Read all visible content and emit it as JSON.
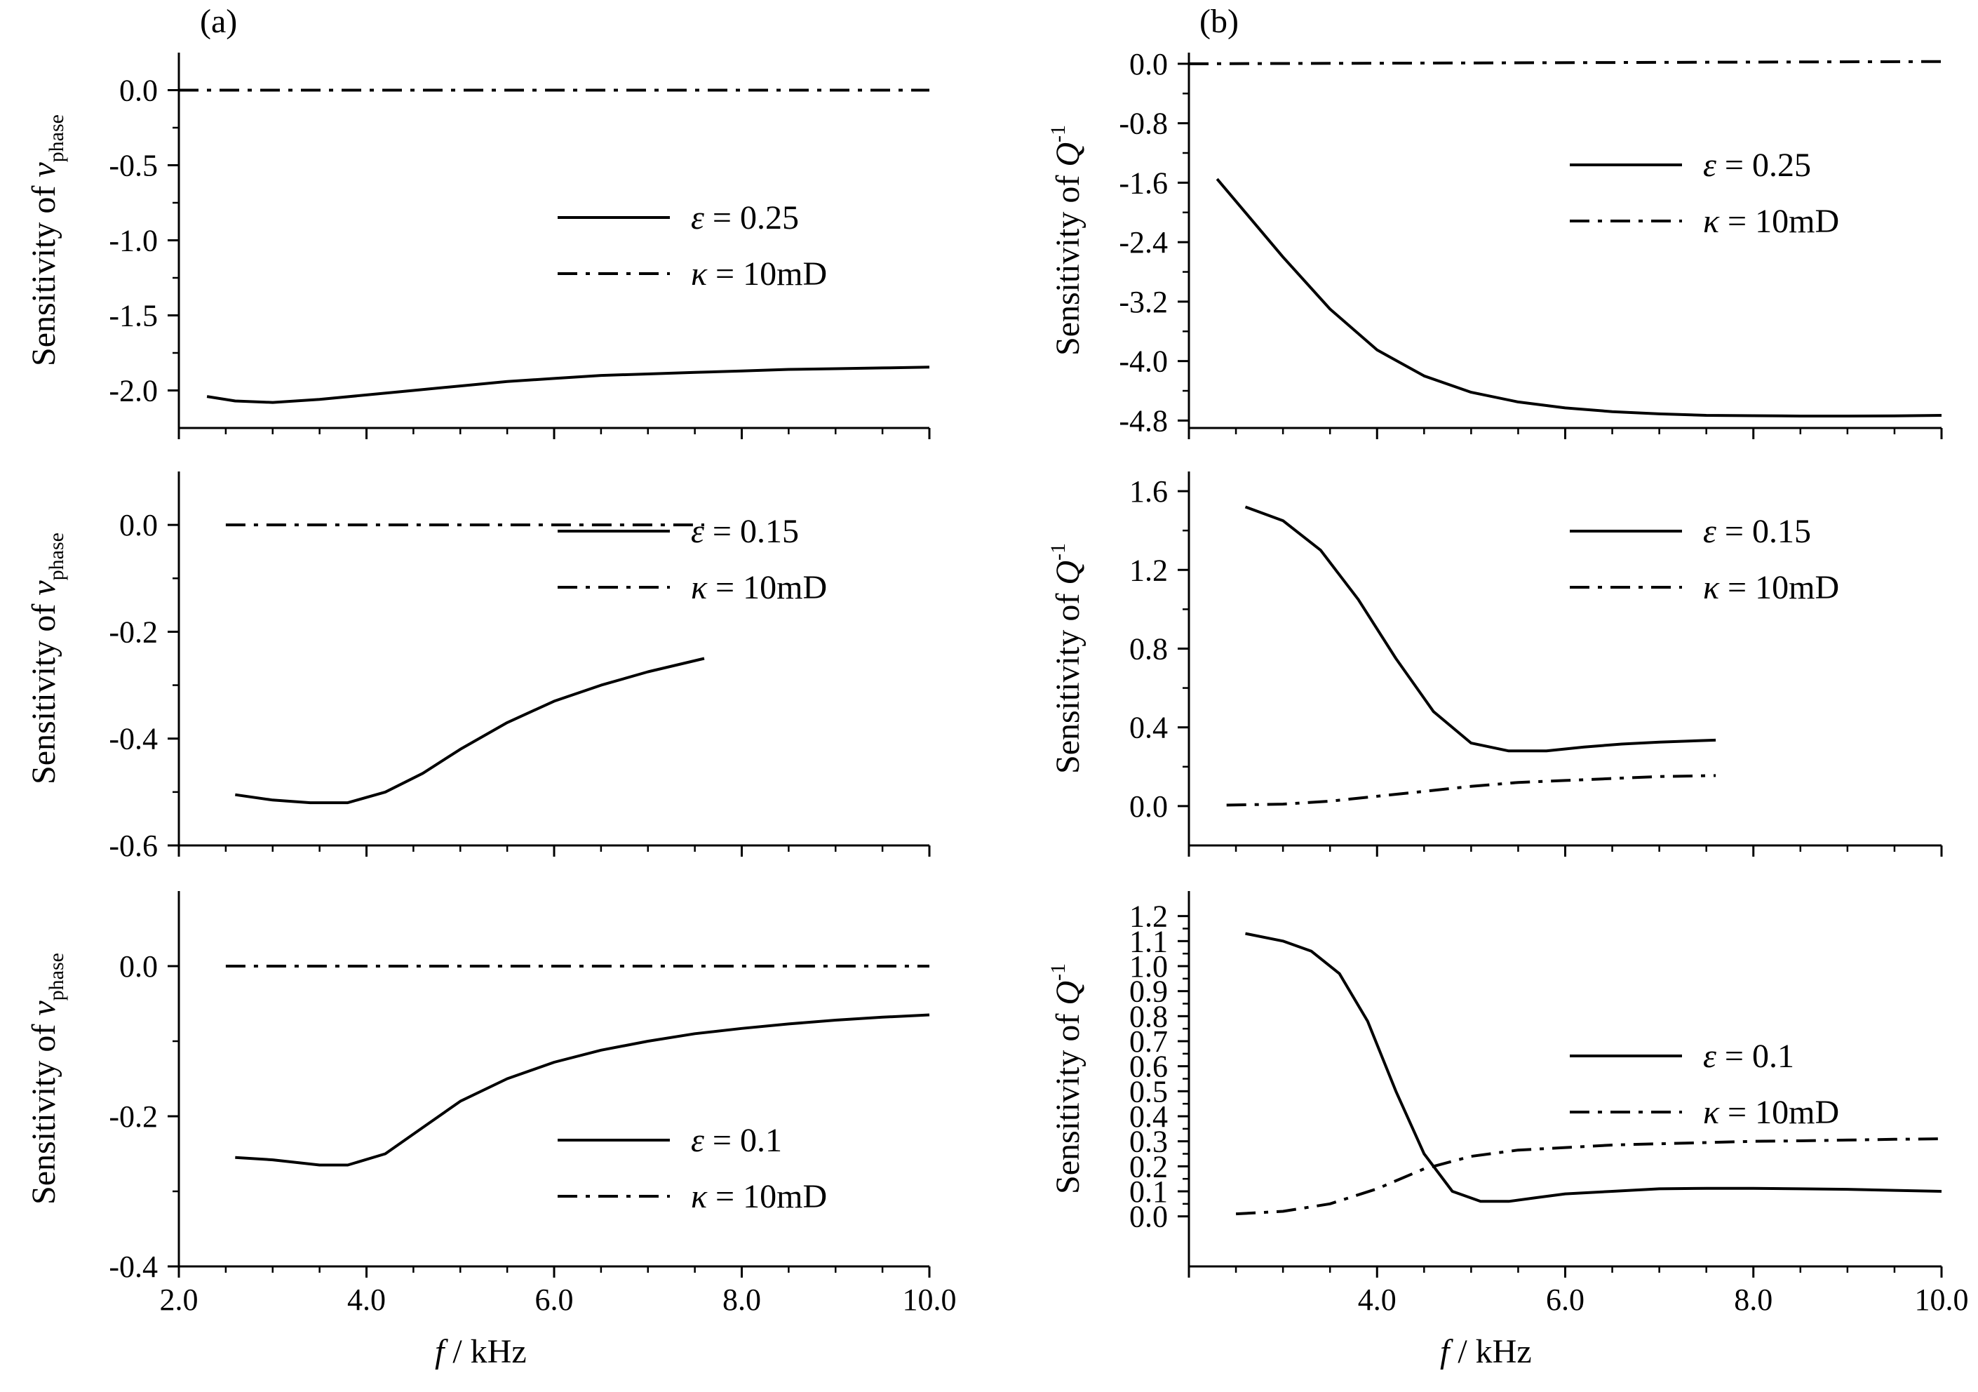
{
  "figure": {
    "panel_labels": [
      "(a)",
      "(b)"
    ],
    "x_axis_title": {
      "var": "f",
      "unit": " / kHz"
    }
  },
  "chart_data": [
    {
      "id": "a1",
      "type": "line",
      "column": "a",
      "row": 0,
      "ylabel": {
        "prefix": "Sensitivity of ",
        "var": "v",
        "sub": "phase"
      },
      "xlim": [
        2.0,
        10.0
      ],
      "ylim": [
        -2.25,
        0.25
      ],
      "yticks": [
        0.0,
        -0.5,
        -1.0,
        -1.5,
        -2.0
      ],
      "ytick_labels": [
        "0.0",
        "-0.5",
        "-1.0",
        "-1.5",
        "-2.0"
      ],
      "xticks": [
        2.0,
        4.0,
        6.0,
        8.0,
        10.0
      ],
      "xtick_labels": [],
      "legend_position": "top-right",
      "series": [
        {
          "name": "ε = 0.25",
          "sym": "ε",
          "rest": " = 0.25",
          "style": "solid",
          "x": [
            2.3,
            2.6,
            3.0,
            3.5,
            4.0,
            4.5,
            5.0,
            5.5,
            6.0,
            6.5,
            7.0,
            7.5,
            8.0,
            8.5,
            9.0,
            9.5,
            10.0
          ],
          "y": [
            -2.04,
            -2.07,
            -2.08,
            -2.06,
            -2.03,
            -2.0,
            -1.97,
            -1.94,
            -1.92,
            -1.9,
            -1.89,
            -1.88,
            -1.87,
            -1.86,
            -1.855,
            -1.85,
            -1.845
          ]
        },
        {
          "name": "κ = 10mD",
          "sym": "κ",
          "rest": " = 10mD",
          "style": "dashdot",
          "x": [
            2.0,
            10.0
          ],
          "y": [
            0.0,
            0.0
          ]
        }
      ]
    },
    {
      "id": "a2",
      "type": "line",
      "column": "a",
      "row": 1,
      "ylabel": {
        "prefix": "Sensitivity of ",
        "var": "v",
        "sub": "phase"
      },
      "xlim": [
        2.0,
        10.0
      ],
      "ylim": [
        -0.6,
        0.1
      ],
      "yticks": [
        0.0,
        -0.2,
        -0.4,
        -0.6
      ],
      "ytick_labels": [
        "0.0",
        "-0.2",
        "-0.4",
        "-0.6"
      ],
      "xticks": [
        2.0,
        4.0,
        6.0,
        8.0,
        10.0
      ],
      "xtick_labels": [],
      "legend_position": "top-right",
      "series": [
        {
          "name": "ε = 0.15",
          "sym": "ε",
          "rest": " = 0.15",
          "style": "solid",
          "x": [
            2.6,
            3.0,
            3.4,
            3.8,
            4.2,
            4.6,
            5.0,
            5.5,
            6.0,
            6.5,
            7.0,
            7.6
          ],
          "y": [
            -0.505,
            -0.515,
            -0.52,
            -0.52,
            -0.5,
            -0.465,
            -0.42,
            -0.37,
            -0.33,
            -0.3,
            -0.275,
            -0.25
          ]
        },
        {
          "name": "κ = 10mD",
          "sym": "κ",
          "rest": " = 10mD",
          "style": "dashdot",
          "x": [
            2.5,
            7.6
          ],
          "y": [
            0.0,
            0.0
          ]
        }
      ]
    },
    {
      "id": "a3",
      "type": "line",
      "column": "a",
      "row": 2,
      "ylabel": {
        "prefix": "Sensitivity of ",
        "var": "v",
        "sub": "phase"
      },
      "xlim": [
        2.0,
        10.0
      ],
      "ylim": [
        -0.4,
        0.1
      ],
      "yticks": [
        0.0,
        -0.2,
        -0.4
      ],
      "ytick_labels": [
        "0.0",
        "-0.2",
        "-0.4"
      ],
      "xticks": [
        2.0,
        4.0,
        6.0,
        8.0,
        10.0
      ],
      "xtick_labels": [
        "2.0",
        "4.0",
        "6.0",
        "8.0",
        "10.0"
      ],
      "legend_position": "bottom-right",
      "series": [
        {
          "name": "ε = 0.1",
          "sym": "ε",
          "rest": " = 0.1",
          "style": "solid",
          "x": [
            2.6,
            3.0,
            3.5,
            3.8,
            4.2,
            4.6,
            5.0,
            5.5,
            6.0,
            6.5,
            7.0,
            7.5,
            8.0,
            8.5,
            9.0,
            9.5,
            10.0
          ],
          "y": [
            -0.255,
            -0.258,
            -0.265,
            -0.265,
            -0.25,
            -0.215,
            -0.18,
            -0.15,
            -0.128,
            -0.112,
            -0.1,
            -0.09,
            -0.083,
            -0.077,
            -0.072,
            -0.068,
            -0.065
          ]
        },
        {
          "name": "κ = 10mD",
          "sym": "κ",
          "rest": " = 10mD",
          "style": "dashdot",
          "x": [
            2.5,
            10.0
          ],
          "y": [
            0.0,
            0.0
          ]
        }
      ]
    },
    {
      "id": "b1",
      "type": "line",
      "column": "b",
      "row": 0,
      "ylabel": {
        "prefix": "Sensitivity of ",
        "var": "Q",
        "sup": "-1"
      },
      "xlim": [
        2.0,
        10.0
      ],
      "ylim": [
        -4.9,
        0.15
      ],
      "yticks": [
        0.0,
        -0.8,
        -1.6,
        -2.4,
        -3.2,
        -4.0,
        -4.8
      ],
      "ytick_labels": [
        "0.0",
        "-0.8",
        "-1.6",
        "-2.4",
        "-3.2",
        "-4.0",
        "-4.8"
      ],
      "xticks": [
        2.0,
        4.0,
        6.0,
        8.0,
        10.0
      ],
      "xtick_labels": [],
      "legend_position": "top-right",
      "series": [
        {
          "name": "ε = 0.25",
          "sym": "ε",
          "rest": " = 0.25",
          "style": "solid",
          "x": [
            2.3,
            2.6,
            3.0,
            3.5,
            4.0,
            4.5,
            5.0,
            5.5,
            6.0,
            6.5,
            7.0,
            7.5,
            8.0,
            8.5,
            9.0,
            9.5,
            10.0
          ],
          "y": [
            -1.55,
            -2.0,
            -2.6,
            -3.3,
            -3.85,
            -4.2,
            -4.42,
            -4.55,
            -4.63,
            -4.68,
            -4.71,
            -4.73,
            -4.735,
            -4.74,
            -4.74,
            -4.738,
            -4.73
          ]
        },
        {
          "name": "κ = 10mD",
          "sym": "κ",
          "rest": " = 10mD",
          "style": "dashdot",
          "x": [
            2.0,
            10.0
          ],
          "y": [
            0.0,
            0.03
          ]
        }
      ]
    },
    {
      "id": "b2",
      "type": "line",
      "column": "b",
      "row": 1,
      "ylabel": {
        "prefix": "Sensitivity of ",
        "var": "Q",
        "sup": "-1"
      },
      "xlim": [
        2.0,
        10.0
      ],
      "ylim": [
        -0.2,
        1.7
      ],
      "yticks": [
        0.0,
        0.4,
        0.8,
        1.2,
        1.6
      ],
      "ytick_labels": [
        "0.0",
        "0.4",
        "0.8",
        "1.2",
        "1.6"
      ],
      "xticks": [
        2.0,
        4.0,
        6.0,
        8.0,
        10.0
      ],
      "xtick_labels": [],
      "legend_position": "top-right",
      "series": [
        {
          "name": "ε = 0.15",
          "sym": "ε",
          "rest": " = 0.15",
          "style": "solid",
          "x": [
            2.6,
            3.0,
            3.4,
            3.8,
            4.2,
            4.6,
            5.0,
            5.4,
            5.8,
            6.2,
            6.6,
            7.0,
            7.6
          ],
          "y": [
            1.52,
            1.45,
            1.3,
            1.05,
            0.75,
            0.48,
            0.32,
            0.28,
            0.28,
            0.3,
            0.315,
            0.325,
            0.335
          ]
        },
        {
          "name": "κ = 10mD",
          "sym": "κ",
          "rest": " = 10mD",
          "style": "dashdot",
          "x": [
            2.4,
            3.0,
            3.5,
            4.0,
            4.5,
            5.0,
            5.5,
            6.0,
            6.5,
            7.0,
            7.6
          ],
          "y": [
            0.005,
            0.01,
            0.025,
            0.05,
            0.075,
            0.1,
            0.12,
            0.13,
            0.14,
            0.15,
            0.155
          ]
        }
      ]
    },
    {
      "id": "b3",
      "type": "line",
      "column": "b",
      "row": 2,
      "ylabel": {
        "prefix": "Sensitivity of ",
        "var": "Q",
        "sup": "-1"
      },
      "xlim": [
        2.0,
        10.0
      ],
      "ylim": [
        -0.2,
        1.3
      ],
      "yticks": [
        0.0,
        0.1,
        0.2,
        0.3,
        0.4,
        0.5,
        0.6,
        0.7,
        0.8,
        0.9,
        1.0,
        1.1,
        1.2
      ],
      "ytick_labels": [
        "0.0",
        "0.1",
        "0.2",
        "0.3",
        "0.4",
        "0.5",
        "0.6",
        "0.7",
        "0.8",
        "0.9",
        "1.0",
        "1.1",
        "1.2"
      ],
      "xticks": [
        4.0,
        6.0,
        8.0,
        10.0
      ],
      "xtick_labels": [
        "4.0",
        "6.0",
        "8.0",
        "10.0"
      ],
      "legend_position": "top-right",
      "series": [
        {
          "name": "ε = 0.1",
          "sym": "ε",
          "rest": " = 0.1",
          "style": "solid",
          "x": [
            2.6,
            3.0,
            3.3,
            3.6,
            3.9,
            4.2,
            4.5,
            4.8,
            5.1,
            5.4,
            5.7,
            6.0,
            6.5,
            7.0,
            7.5,
            8.0,
            8.5,
            9.0,
            9.5,
            10.0
          ],
          "y": [
            1.13,
            1.1,
            1.06,
            0.97,
            0.78,
            0.5,
            0.25,
            0.1,
            0.06,
            0.06,
            0.075,
            0.09,
            0.1,
            0.11,
            0.112,
            0.112,
            0.11,
            0.108,
            0.104,
            0.1
          ]
        },
        {
          "name": "κ = 10mD",
          "sym": "κ",
          "rest": " = 10mD",
          "style": "dashdot",
          "x": [
            2.5,
            3.0,
            3.5,
            4.0,
            4.5,
            5.0,
            5.5,
            6.0,
            6.5,
            7.0,
            7.5,
            8.0,
            8.5,
            9.0,
            9.5,
            10.0
          ],
          "y": [
            0.01,
            0.02,
            0.05,
            0.11,
            0.19,
            0.24,
            0.265,
            0.275,
            0.285,
            0.29,
            0.295,
            0.3,
            0.302,
            0.305,
            0.308,
            0.31
          ]
        }
      ]
    }
  ]
}
